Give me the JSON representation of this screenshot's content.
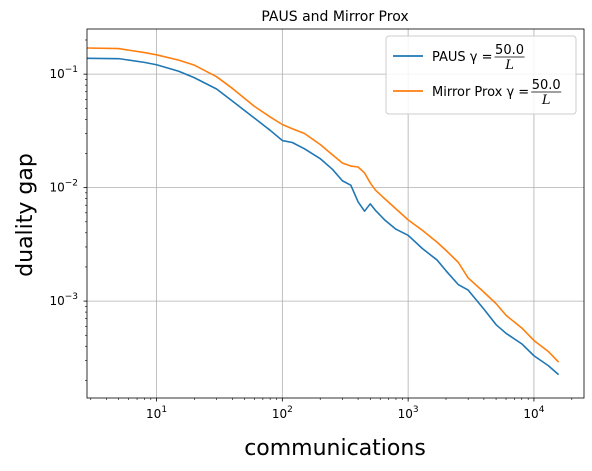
{
  "chart_data": {
    "type": "line",
    "title": "PAUS and Mirror Prox",
    "xlabel": "communications",
    "ylabel": "duality gap",
    "xscale": "log",
    "yscale": "log",
    "xlim": [
      2.8,
      25000
    ],
    "ylim": [
      0.00014,
      0.25
    ],
    "grid": true,
    "legend_position": "top-right",
    "x_ticks": [
      {
        "value": 10,
        "base": "10",
        "exp": "1"
      },
      {
        "value": 100,
        "base": "10",
        "exp": "2"
      },
      {
        "value": 1000,
        "base": "10",
        "exp": "3"
      },
      {
        "value": 10000,
        "base": "10",
        "exp": "4"
      }
    ],
    "y_ticks": [
      {
        "value": 0.001,
        "base": "10",
        "exp": "−3"
      },
      {
        "value": 0.01,
        "base": "10",
        "exp": "−2"
      },
      {
        "value": 0.1,
        "base": "10",
        "exp": "−1"
      }
    ],
    "series": [
      {
        "name": "PAUS",
        "legend_prefix": "PAUS γ = ",
        "legend_num": "50.0",
        "legend_den": "L",
        "color": "#1f77b4",
        "x": [
          2.8,
          5,
          8,
          10,
          15,
          20,
          30,
          40,
          60,
          80,
          100,
          120,
          150,
          200,
          250,
          300,
          350,
          400,
          450,
          500,
          550,
          650,
          800,
          1000,
          1300,
          1700,
          2000,
          2500,
          3000,
          4000,
          5000,
          6000,
          8000,
          10000,
          13000,
          15700
        ],
        "y": [
          0.138,
          0.137,
          0.127,
          0.121,
          0.106,
          0.093,
          0.074,
          0.058,
          0.041,
          0.032,
          0.026,
          0.025,
          0.022,
          0.018,
          0.0145,
          0.0115,
          0.0105,
          0.0075,
          0.0062,
          0.0072,
          0.0063,
          0.0052,
          0.0043,
          0.0038,
          0.0029,
          0.0023,
          0.00185,
          0.0014,
          0.00125,
          0.00085,
          0.00062,
          0.00052,
          0.00042,
          0.00033,
          0.00027,
          0.000225
        ]
      },
      {
        "name": "Mirror Prox",
        "legend_prefix": "Mirror Prox γ = ",
        "legend_num": "50.0",
        "legend_den": "L",
        "color": "#ff7f0e",
        "x": [
          2.8,
          5,
          8,
          10,
          15,
          20,
          30,
          40,
          60,
          80,
          100,
          120,
          150,
          200,
          250,
          300,
          350,
          400,
          450,
          500,
          550,
          650,
          800,
          1000,
          1300,
          1700,
          2000,
          2500,
          3000,
          4000,
          5000,
          6000,
          8000,
          10000,
          13000,
          15700
        ],
        "y": [
          0.17,
          0.168,
          0.155,
          0.148,
          0.133,
          0.12,
          0.095,
          0.075,
          0.052,
          0.042,
          0.036,
          0.033,
          0.03,
          0.024,
          0.0195,
          0.0165,
          0.0155,
          0.0152,
          0.0135,
          0.011,
          0.0095,
          0.008,
          0.0065,
          0.0052,
          0.0042,
          0.0033,
          0.0028,
          0.0022,
          0.0016,
          0.0012,
          0.00095,
          0.00075,
          0.00058,
          0.00045,
          0.00036,
          0.00029
        ]
      }
    ]
  }
}
